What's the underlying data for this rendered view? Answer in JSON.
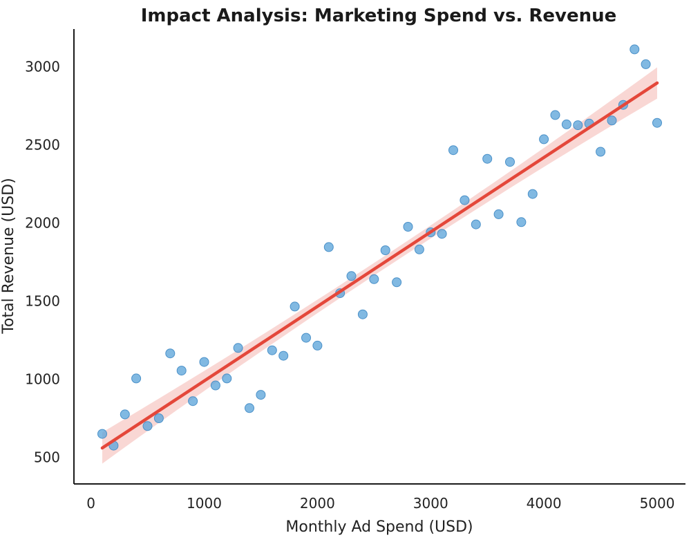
{
  "chart_data": {
    "type": "scatter",
    "title": "Impact Analysis: Marketing Spend vs. Revenue",
    "xlabel": "Monthly Ad Spend (USD)",
    "ylabel": "Total Revenue (USD)",
    "xlim": [
      -150,
      5250
    ],
    "ylim": [
      330,
      3240
    ],
    "xticks": [
      0,
      1000,
      2000,
      3000,
      4000,
      5000
    ],
    "yticks": [
      500,
      1000,
      1500,
      2000,
      2500,
      3000
    ],
    "grid": false,
    "legend": "none",
    "colors": {
      "points": "#5DA5DA",
      "points_edge": "#4A90C8",
      "regression": "#E4473A",
      "ci_band": "#F4B6B0",
      "axis": "#1a1a1a"
    },
    "points": {
      "x": [
        100,
        200,
        300,
        400,
        500,
        600,
        700,
        800,
        900,
        1000,
        1100,
        1200,
        1300,
        1400,
        1500,
        1600,
        1700,
        1800,
        1900,
        2000,
        2100,
        2200,
        2300,
        2400,
        2500,
        2600,
        2700,
        2800,
        2900,
        3000,
        3100,
        3200,
        3300,
        3400,
        3500,
        3600,
        3700,
        3800,
        3900,
        4000,
        4100,
        4200,
        4300,
        4400,
        4500,
        4600,
        4700,
        4800,
        4900,
        5000
      ],
      "y": [
        650,
        575,
        775,
        1005,
        700,
        750,
        1165,
        1055,
        860,
        1110,
        960,
        1005,
        1200,
        815,
        900,
        1185,
        1150,
        1465,
        1265,
        1215,
        1845,
        1550,
        1660,
        1415,
        1640,
        1825,
        1620,
        1975,
        1830,
        1940,
        1930,
        2465,
        2145,
        1990,
        2410,
        2055,
        2390,
        2005,
        2185,
        2535,
        2690,
        2630,
        2625,
        2635,
        2455,
        2655,
        2755,
        3110,
        3015,
        2640
      ]
    },
    "regression": {
      "x_start": 100,
      "y_start": 560,
      "x_end": 5000,
      "y_end": 2895
    },
    "ci_band": {
      "half_width_ends": 100,
      "half_width_center": 40
    }
  }
}
